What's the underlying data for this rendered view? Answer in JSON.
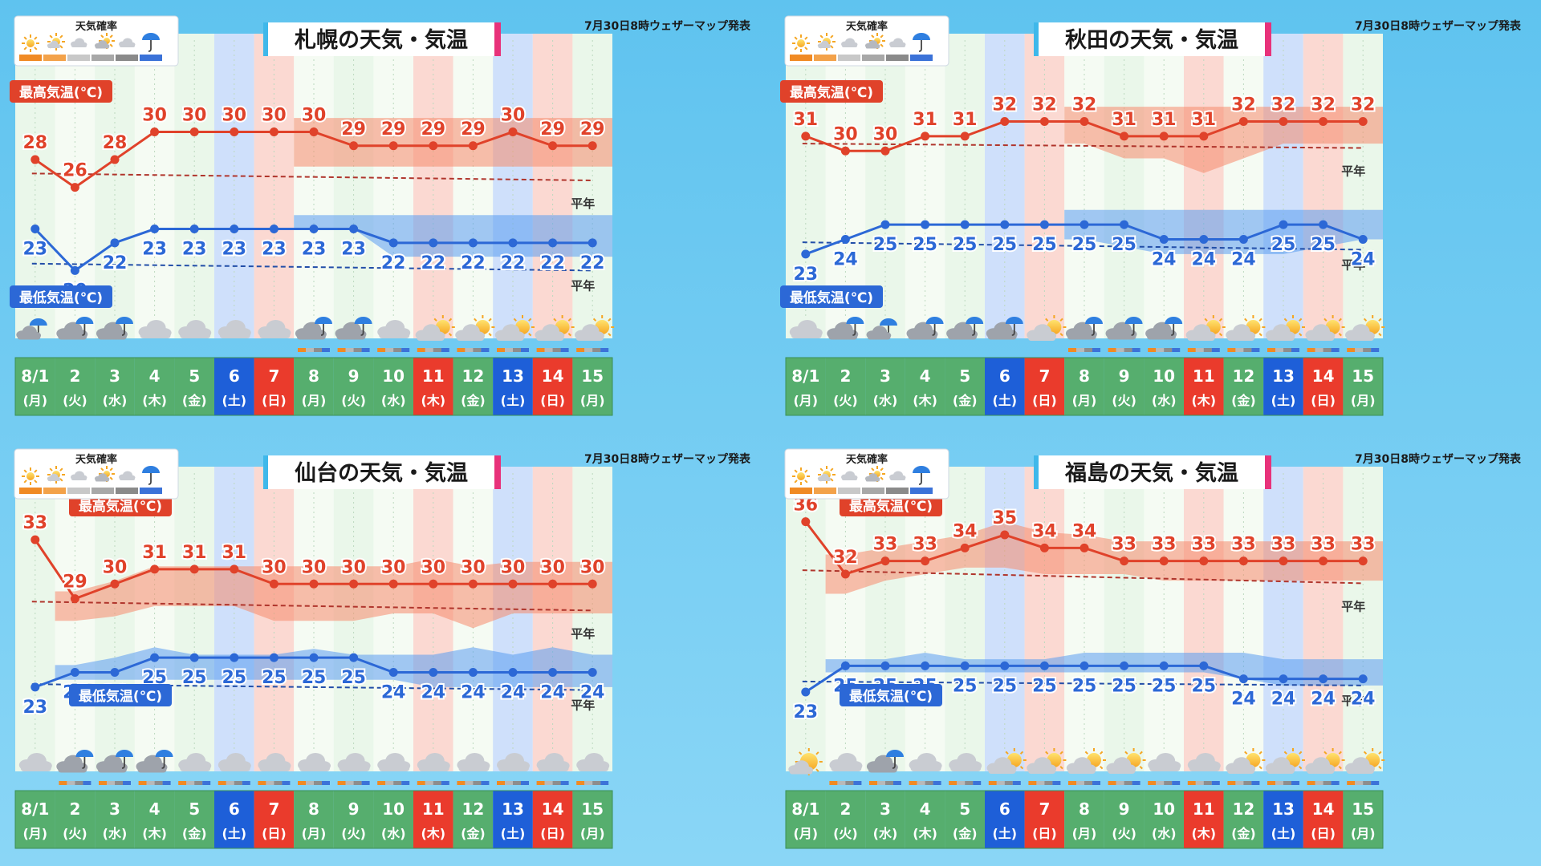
{
  "header": {
    "publish_note": "7月30日8時ウェザーマップ発表",
    "prob_legend_title": "天気確率",
    "max_label": "最高気温(℃)",
    "min_label": "最低気温(℃)",
    "normal_label": "平年"
  },
  "days": [
    {
      "date": "8/1",
      "dow": "(月)",
      "kind": "weekday"
    },
    {
      "date": "2",
      "dow": "(火)",
      "kind": "weekday"
    },
    {
      "date": "3",
      "dow": "(水)",
      "kind": "weekday"
    },
    {
      "date": "4",
      "dow": "(木)",
      "kind": "weekday"
    },
    {
      "date": "5",
      "dow": "(金)",
      "kind": "weekday"
    },
    {
      "date": "6",
      "dow": "(土)",
      "kind": "saturday"
    },
    {
      "date": "7",
      "dow": "(日)",
      "kind": "holiday"
    },
    {
      "date": "8",
      "dow": "(月)",
      "kind": "weekday"
    },
    {
      "date": "9",
      "dow": "(火)",
      "kind": "weekday"
    },
    {
      "date": "10",
      "dow": "(水)",
      "kind": "weekday"
    },
    {
      "date": "11",
      "dow": "(木)",
      "kind": "holiday"
    },
    {
      "date": "12",
      "dow": "(金)",
      "kind": "weekday"
    },
    {
      "date": "13",
      "dow": "(土)",
      "kind": "saturday"
    },
    {
      "date": "14",
      "dow": "(日)",
      "kind": "holiday"
    },
    {
      "date": "15",
      "dow": "(月)",
      "kind": "weekday"
    }
  ],
  "colors": {
    "max_line": "#e0422a",
    "min_line": "#2c68d6",
    "max_band": "#f58a6c",
    "min_band": "#5a9cf0",
    "saturday_col": "#cfe0fb",
    "holiday_col": "#fbd9d2",
    "weekday_col_a": "#eaf7ea",
    "weekday_col_b": "#f5fbf3",
    "date_weekday": "#56ae6e",
    "date_saturday": "#1e5fd8",
    "date_holiday": "#ea3b2c"
  },
  "chart_data": [
    {
      "title": "札幌の天気・気温",
      "type": "line",
      "x": [
        "8/1",
        "2",
        "3",
        "4",
        "5",
        "6",
        "7",
        "8",
        "9",
        "10",
        "11",
        "12",
        "13",
        "14",
        "15"
      ],
      "series": [
        {
          "name": "最高気温(℃)",
          "values": [
            28,
            26,
            28,
            30,
            30,
            30,
            30,
            30,
            29,
            29,
            29,
            29,
            30,
            29,
            29
          ]
        },
        {
          "name": "最低気温(℃)",
          "values": [
            23,
            20,
            22,
            23,
            23,
            23,
            23,
            23,
            23,
            22,
            22,
            22,
            22,
            22,
            22
          ]
        }
      ],
      "max_band": {
        "start": 7,
        "low": [
          27.5,
          27.5,
          27.5,
          27.5,
          27.5,
          27.5,
          27.5,
          27.5
        ],
        "high": [
          31,
          31,
          31,
          31,
          31,
          31,
          31,
          31
        ]
      },
      "min_band": {
        "start": 7,
        "low": [
          23,
          23,
          21,
          21,
          21,
          21,
          21,
          21
        ],
        "high": [
          24,
          24,
          24,
          24,
          24,
          24,
          24,
          24
        ]
      },
      "normal_max": [
        27,
        26.5
      ],
      "normal_min": [
        20.5,
        20
      ],
      "ylim": [
        18,
        35
      ],
      "weather_icons": [
        "rain",
        "cloud-rain",
        "cloud-rain",
        "cloud",
        "cloud",
        "cloud",
        "cloud",
        "cloud-rain",
        "cloud-rain",
        "cloud",
        "cloud-sun",
        "cloud-sun",
        "cloud-sun",
        "cloud-sun",
        "cloud-sun"
      ],
      "probability_bars": [
        false,
        false,
        false,
        false,
        false,
        false,
        false,
        true,
        true,
        true,
        true,
        true,
        true,
        true,
        true
      ]
    },
    {
      "title": "秋田の天気・気温",
      "type": "line",
      "x": [
        "8/1",
        "2",
        "3",
        "4",
        "5",
        "6",
        "7",
        "8",
        "9",
        "10",
        "11",
        "12",
        "13",
        "14",
        "15"
      ],
      "series": [
        {
          "name": "最高気温(℃)",
          "values": [
            31,
            30,
            30,
            31,
            31,
            32,
            32,
            32,
            31,
            31,
            31,
            32,
            32,
            32,
            32
          ]
        },
        {
          "name": "最低気温(℃)",
          "values": [
            23,
            24,
            25,
            25,
            25,
            25,
            25,
            25,
            25,
            24,
            24,
            24,
            25,
            25,
            24
          ]
        }
      ],
      "max_band": {
        "start": 7,
        "low": [
          30.5,
          29.5,
          29.5,
          28.5,
          29.5,
          30.5,
          30.5,
          30.5
        ],
        "high": [
          33,
          33,
          33,
          33,
          33,
          33,
          33,
          33
        ]
      },
      "min_band": {
        "start": 7,
        "low": [
          24,
          23.5,
          23,
          23,
          23,
          23,
          23.5,
          24
        ],
        "high": [
          26,
          26,
          26,
          26,
          26,
          26,
          26,
          26
        ]
      },
      "normal_max": [
        30.5,
        30.2
      ],
      "normal_min": [
        23.8,
        23.3
      ],
      "ylim": [
        20,
        36
      ],
      "weather_icons": [
        "cloud",
        "cloud-rain",
        "rain",
        "cloud-rain",
        "cloud-rain",
        "cloud-rain",
        "cloud-sun",
        "cloud-rain",
        "cloud-rain",
        "cloud-rain",
        "cloud-sun",
        "cloud-sun",
        "cloud-sun",
        "cloud-sun",
        "cloud-sun"
      ],
      "probability_bars": [
        false,
        false,
        false,
        false,
        false,
        false,
        false,
        true,
        true,
        true,
        true,
        true,
        true,
        true,
        true
      ]
    },
    {
      "title": "仙台の天気・気温",
      "type": "line",
      "x": [
        "8/1",
        "2",
        "3",
        "4",
        "5",
        "6",
        "7",
        "8",
        "9",
        "10",
        "11",
        "12",
        "13",
        "14",
        "15"
      ],
      "series": [
        {
          "name": "最高気温(℃)",
          "values": [
            33,
            29,
            30,
            31,
            31,
            31,
            30,
            30,
            30,
            30,
            30,
            30,
            30,
            30,
            30
          ]
        },
        {
          "name": "最低気温(℃)",
          "values": [
            23,
            24,
            24,
            25,
            25,
            25,
            25,
            25,
            25,
            24,
            24,
            24,
            24,
            24,
            24
          ]
        }
      ],
      "max_band": {
        "start": 1,
        "low": [
          27.5,
          27.8,
          28.5,
          28.5,
          28.5,
          27.5,
          27.5,
          27.5,
          28,
          28,
          27,
          28,
          28,
          28
        ],
        "high": [
          29.5,
          30.2,
          31.2,
          31.2,
          31.2,
          31.2,
          31.2,
          31.2,
          31.2,
          31.7,
          31.2,
          31.5,
          31.5,
          31.5
        ]
      },
      "min_band": {
        "start": 1,
        "low": [
          23.5,
          23.5,
          23.5,
          23.5,
          23.5,
          23.5,
          23.5,
          23.5,
          23.5,
          23,
          23,
          23,
          23,
          23
        ],
        "high": [
          24.5,
          25,
          25.7,
          25.2,
          25.2,
          25.2,
          25.6,
          25.2,
          25.2,
          25.2,
          25.7,
          25.2,
          25.7,
          25.2
        ]
      },
      "normal_max": [
        28.8,
        28.2
      ],
      "normal_min": [
        23.2,
        22.8
      ],
      "ylim": [
        20,
        36
      ],
      "weather_icons": [
        "cloud",
        "cloud-rain",
        "cloud-rain",
        "cloud-rain",
        "cloud",
        "cloud",
        "cloud",
        "cloud",
        "cloud",
        "cloud",
        "cloud",
        "cloud",
        "cloud",
        "cloud",
        "cloud"
      ],
      "probability_bars": [
        false,
        true,
        true,
        true,
        true,
        true,
        true,
        true,
        true,
        true,
        true,
        true,
        true,
        true,
        true
      ]
    },
    {
      "title": "福島の天気・気温",
      "type": "line",
      "x": [
        "8/1",
        "2",
        "3",
        "4",
        "5",
        "6",
        "7",
        "8",
        "9",
        "10",
        "11",
        "12",
        "13",
        "14",
        "15"
      ],
      "series": [
        {
          "name": "最高気温(℃)",
          "values": [
            36,
            32,
            33,
            33,
            34,
            35,
            34,
            34,
            33,
            33,
            33,
            33,
            33,
            33,
            33
          ]
        },
        {
          "name": "最低気温(℃)",
          "values": [
            23,
            25,
            25,
            25,
            25,
            25,
            25,
            25,
            25,
            25,
            25,
            24,
            24,
            24,
            24
          ]
        }
      ],
      "max_band": {
        "start": 1,
        "low": [
          30.5,
          31.5,
          32,
          32.5,
          32.5,
          32,
          32,
          32,
          31.5,
          31.5,
          31.5,
          31.5,
          31.5,
          31.5
        ],
        "high": [
          33.5,
          34,
          34.5,
          35,
          36,
          35.2,
          35,
          34.5,
          34.5,
          34.5,
          34.5,
          34.5,
          34.5,
          34.5
        ]
      },
      "min_band": {
        "start": 1,
        "low": [
          24.5,
          24.5,
          24.5,
          24.5,
          24.5,
          24.5,
          24.5,
          24.5,
          24.5,
          24.5,
          24,
          23.5,
          23.5,
          23.5
        ],
        "high": [
          25.5,
          25.5,
          26,
          25.5,
          25.5,
          25.5,
          26,
          26,
          26,
          26,
          26,
          25.5,
          25.5,
          25.5
        ]
      },
      "normal_max": [
        32.3,
        31.3
      ],
      "normal_min": [
        23.8,
        23.5
      ],
      "ylim": [
        20,
        38
      ],
      "weather_icons": [
        "sun-cloud",
        "cloud",
        "cloud-rain",
        "cloud",
        "cloud",
        "cloud-sun",
        "cloud-sun",
        "cloud-sun",
        "cloud-sun",
        "cloud",
        "cloud",
        "cloud-sun",
        "cloud-sun",
        "cloud-sun",
        "cloud-sun"
      ],
      "probability_bars": [
        false,
        true,
        true,
        true,
        true,
        true,
        true,
        true,
        true,
        true,
        true,
        true,
        true,
        true,
        true
      ]
    }
  ]
}
